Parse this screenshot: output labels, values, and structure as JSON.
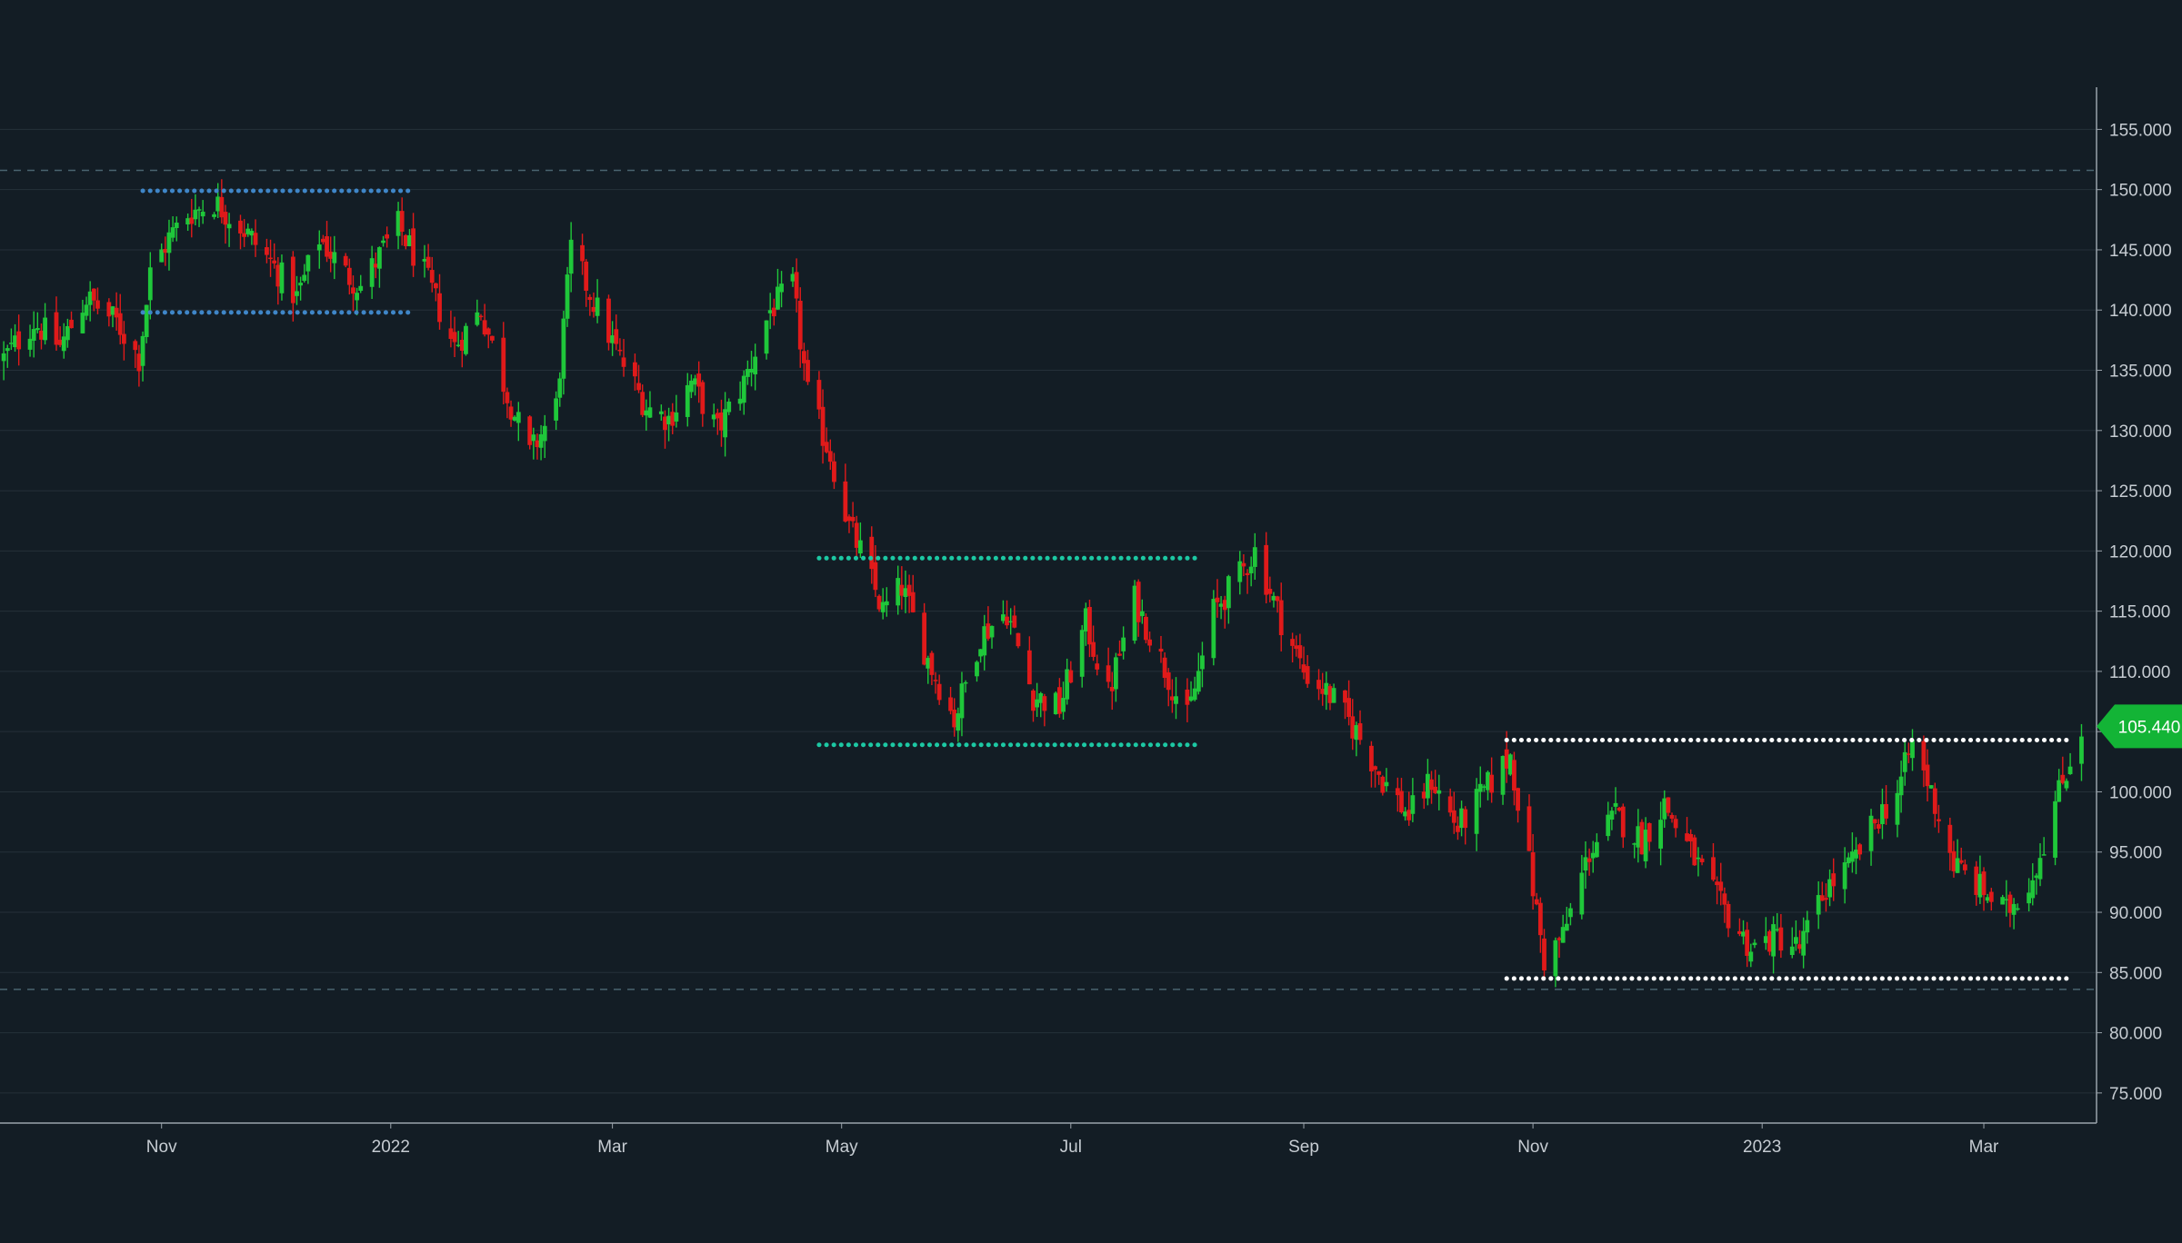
{
  "colors": {
    "background": "#131d25",
    "grid": "#253039",
    "axis_line": "#9aa3ab",
    "axis_text": "#c6ccd2",
    "up": "#1fc73a",
    "down": "#e01a1a",
    "dashed_level": "#4a6470",
    "blue_channel": "#3f86c8",
    "teal_channel": "#1cc8a3",
    "white_channel": "#ffffff",
    "price_tag": "#13b436",
    "price_tag_text": "#ffffff"
  },
  "chart_data": {
    "type": "candlestick",
    "title": "",
    "xlabel": "",
    "ylabel": "",
    "ylim": [
      72.5,
      158.5
    ],
    "xlim": [
      "2021-09-19",
      "2023-03-31"
    ],
    "y_ticks": [
      "75.000",
      "80.000",
      "85.000",
      "90.000",
      "95.000",
      "100.000",
      "105.000",
      "110.000",
      "115.000",
      "120.000",
      "125.000",
      "130.000",
      "135.000",
      "140.000",
      "145.000",
      "150.000",
      "155.000"
    ],
    "x_ticks": [
      {
        "label": "Nov",
        "date": "2021-11-01"
      },
      {
        "label": "2022",
        "date": "2022-01-01"
      },
      {
        "label": "Mar",
        "date": "2022-03-01"
      },
      {
        "label": "May",
        "date": "2022-05-01"
      },
      {
        "label": "Jul",
        "date": "2022-07-01"
      },
      {
        "label": "Sep",
        "date": "2022-09-01"
      },
      {
        "label": "Nov",
        "date": "2022-11-01"
      },
      {
        "label": "2023",
        "date": "2023-01-01"
      },
      {
        "label": "Mar",
        "date": "2023-03-01"
      }
    ],
    "grid": true,
    "last_price": "105.440",
    "last_price_value": 105.44,
    "horizontal_levels": [
      {
        "value": 151.6,
        "style": "dashed"
      },
      {
        "value": 83.6,
        "style": "dashed"
      }
    ],
    "channels": [
      {
        "color_key": "blue_channel",
        "start": "2021-10-27",
        "end": "2022-01-07",
        "upper": 149.9,
        "lower": 139.8
      },
      {
        "color_key": "teal_channel",
        "start": "2022-04-25",
        "end": "2022-08-04",
        "upper": 119.4,
        "lower": 103.9
      },
      {
        "color_key": "white_channel",
        "start": "2022-10-25",
        "end": "2023-03-24",
        "upper": 104.3,
        "lower": 84.5
      }
    ],
    "price_anchors": [
      [
        "2021-09-20",
        136
      ],
      [
        "2021-09-28",
        139
      ],
      [
        "2021-10-05",
        137
      ],
      [
        "2021-10-12",
        141
      ],
      [
        "2021-10-20",
        139
      ],
      [
        "2021-10-26",
        136
      ],
      [
        "2021-10-29",
        143
      ],
      [
        "2021-11-03",
        146
      ],
      [
        "2021-11-08",
        148
      ],
      [
        "2021-11-15",
        149
      ],
      [
        "2021-11-22",
        147
      ],
      [
        "2021-11-30",
        144
      ],
      [
        "2021-12-07",
        141
      ],
      [
        "2021-12-13",
        146
      ],
      [
        "2021-12-20",
        143
      ],
      [
        "2021-12-24",
        142
      ],
      [
        "2022-01-03",
        147
      ],
      [
        "2022-01-10",
        143
      ],
      [
        "2022-01-18",
        137
      ],
      [
        "2022-01-25",
        140
      ],
      [
        "2022-02-01",
        133
      ],
      [
        "2022-02-07",
        128
      ],
      [
        "2022-02-14",
        132
      ],
      [
        "2022-02-18",
        145
      ],
      [
        "2022-02-25",
        140
      ],
      [
        "2022-03-03",
        136
      ],
      [
        "2022-03-10",
        132
      ],
      [
        "2022-03-16",
        131
      ],
      [
        "2022-03-22",
        134
      ],
      [
        "2022-03-29",
        130
      ],
      [
        "2022-04-05",
        134
      ],
      [
        "2022-04-12",
        140
      ],
      [
        "2022-04-18",
        142
      ],
      [
        "2022-04-22",
        133
      ],
      [
        "2022-04-28",
        128
      ],
      [
        "2022-05-03",
        122
      ],
      [
        "2022-05-06",
        120
      ],
      [
        "2022-05-12",
        115
      ],
      [
        "2022-05-17",
        117
      ],
      [
        "2022-05-24",
        111
      ],
      [
        "2022-05-31",
        106
      ],
      [
        "2022-06-07",
        113
      ],
      [
        "2022-06-14",
        115
      ],
      [
        "2022-06-21",
        108
      ],
      [
        "2022-06-28",
        107
      ],
      [
        "2022-07-05",
        114
      ],
      [
        "2022-07-11",
        108
      ],
      [
        "2022-07-18",
        116
      ],
      [
        "2022-07-25",
        111
      ],
      [
        "2022-08-01",
        106
      ],
      [
        "2022-08-08",
        115
      ],
      [
        "2022-08-15",
        118
      ],
      [
        "2022-08-19",
        120
      ],
      [
        "2022-08-25",
        115
      ],
      [
        "2022-09-01",
        110
      ],
      [
        "2022-09-08",
        108
      ],
      [
        "2022-09-15",
        105
      ],
      [
        "2022-09-22",
        101
      ],
      [
        "2022-09-29",
        98
      ],
      [
        "2022-10-05",
        101
      ],
      [
        "2022-10-12",
        97
      ],
      [
        "2022-10-19",
        100
      ],
      [
        "2022-10-26",
        103
      ],
      [
        "2022-10-31",
        94
      ],
      [
        "2022-11-04",
        86
      ],
      [
        "2022-11-09",
        88
      ],
      [
        "2022-11-16",
        95
      ],
      [
        "2022-11-23",
        98
      ],
      [
        "2022-11-30",
        96
      ],
      [
        "2022-12-06",
        99
      ],
      [
        "2022-12-13",
        95
      ],
      [
        "2022-12-20",
        91
      ],
      [
        "2022-12-29",
        87
      ],
      [
        "2023-01-05",
        88
      ],
      [
        "2023-01-11",
        87
      ],
      [
        "2023-01-18",
        92
      ],
      [
        "2023-01-25",
        94
      ],
      [
        "2023-02-01",
        98
      ],
      [
        "2023-02-06",
        100
      ],
      [
        "2023-02-10",
        104
      ],
      [
        "2023-02-15",
        100
      ],
      [
        "2023-02-21",
        94
      ],
      [
        "2023-02-28",
        92
      ],
      [
        "2023-03-07",
        90
      ],
      [
        "2023-03-14",
        93
      ],
      [
        "2023-03-20",
        99
      ],
      [
        "2023-03-27",
        105.44
      ]
    ]
  }
}
